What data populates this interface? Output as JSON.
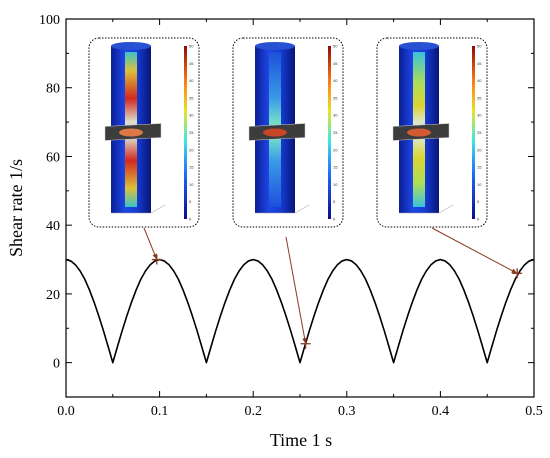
{
  "chart_data": {
    "type": "line",
    "xlabel": "Time 1 s",
    "ylabel": "Shear rate 1/s",
    "xlim": [
      0,
      0.5
    ],
    "ylim": [
      -10,
      100
    ],
    "xticks": [
      "0.0",
      "0.1",
      "0.2",
      "0.3",
      "0.4",
      "0.5"
    ],
    "yticks": [
      "0",
      "20",
      "40",
      "60",
      "80",
      "100"
    ],
    "grid": false,
    "line_color": "#000000",
    "series": [
      {
        "x": [
          0,
          0.005,
          0.01,
          0.015,
          0.02,
          0.025,
          0.03,
          0.035,
          0.04,
          0.045,
          0.05,
          0.055,
          0.06,
          0.065,
          0.07,
          0.075,
          0.08,
          0.085,
          0.09,
          0.095,
          0.1,
          0.105,
          0.11,
          0.115,
          0.12,
          0.125,
          0.13,
          0.135,
          0.14,
          0.145,
          0.15,
          0.155,
          0.16,
          0.165,
          0.17,
          0.175,
          0.18,
          0.185,
          0.19,
          0.195,
          0.2,
          0.205,
          0.21,
          0.215,
          0.22,
          0.225,
          0.23,
          0.235,
          0.24,
          0.245,
          0.25,
          0.255,
          0.26,
          0.265,
          0.27,
          0.275,
          0.28,
          0.285,
          0.29,
          0.295,
          0.3,
          0.305,
          0.31,
          0.315,
          0.32,
          0.325,
          0.33,
          0.335,
          0.34,
          0.345,
          0.35,
          0.355,
          0.36,
          0.365,
          0.37,
          0.375,
          0.38,
          0.385,
          0.39,
          0.395,
          0.4,
          0.405,
          0.41,
          0.415,
          0.42,
          0.425,
          0.43,
          0.435,
          0.44,
          0.445,
          0.45,
          0.455,
          0.46,
          0.465,
          0.47,
          0.475,
          0.48,
          0.485,
          0.49,
          0.495,
          0.5
        ],
        "y": [
          30.0,
          29.6,
          28.5,
          26.7,
          24.3,
          21.2,
          17.6,
          13.6,
          9.3,
          4.7,
          0.0,
          4.7,
          9.3,
          13.6,
          17.6,
          21.2,
          24.3,
          26.7,
          28.5,
          29.6,
          30.0,
          29.6,
          28.5,
          26.7,
          24.3,
          21.2,
          17.6,
          13.6,
          9.3,
          4.7,
          0.0,
          4.7,
          9.3,
          13.6,
          17.6,
          21.2,
          24.3,
          26.7,
          28.5,
          29.6,
          30.0,
          29.6,
          28.5,
          26.7,
          24.3,
          21.2,
          17.6,
          13.6,
          9.3,
          4.7,
          0.0,
          4.7,
          9.3,
          13.6,
          17.6,
          21.2,
          24.3,
          26.7,
          28.5,
          29.6,
          30.0,
          29.6,
          28.5,
          26.7,
          24.3,
          21.2,
          17.6,
          13.6,
          9.3,
          4.7,
          0.0,
          4.7,
          9.3,
          13.6,
          17.6,
          21.2,
          24.3,
          26.7,
          28.5,
          29.6,
          30.0,
          29.6,
          28.5,
          26.7,
          24.3,
          21.2,
          17.6,
          13.6,
          9.3,
          4.7,
          0.0,
          4.7,
          9.3,
          13.6,
          17.6,
          21.2,
          24.3,
          26.7,
          28.5,
          29.6,
          30.0
        ]
      }
    ],
    "markers": [
      {
        "x": 0.097,
        "y": 30.0
      },
      {
        "x": 0.256,
        "y": 5.5
      },
      {
        "x": 0.482,
        "y": 26.0
      }
    ],
    "marker_color": "#8B3A22",
    "insets": [
      {
        "name": "inset-t1",
        "colorbar_ticks": [
          "50",
          "45",
          "40",
          "35",
          "30",
          "25",
          "20",
          "15",
          "10",
          "5",
          "0"
        ]
      },
      {
        "name": "inset-t2",
        "colorbar_ticks": [
          "50",
          "45",
          "40",
          "35",
          "30",
          "25",
          "20",
          "15",
          "10",
          "5",
          "0"
        ]
      },
      {
        "name": "inset-t3",
        "colorbar_ticks": [
          "50",
          "45",
          "40",
          "35",
          "30",
          "25",
          "20",
          "15",
          "10",
          "5",
          "0"
        ]
      }
    ]
  }
}
